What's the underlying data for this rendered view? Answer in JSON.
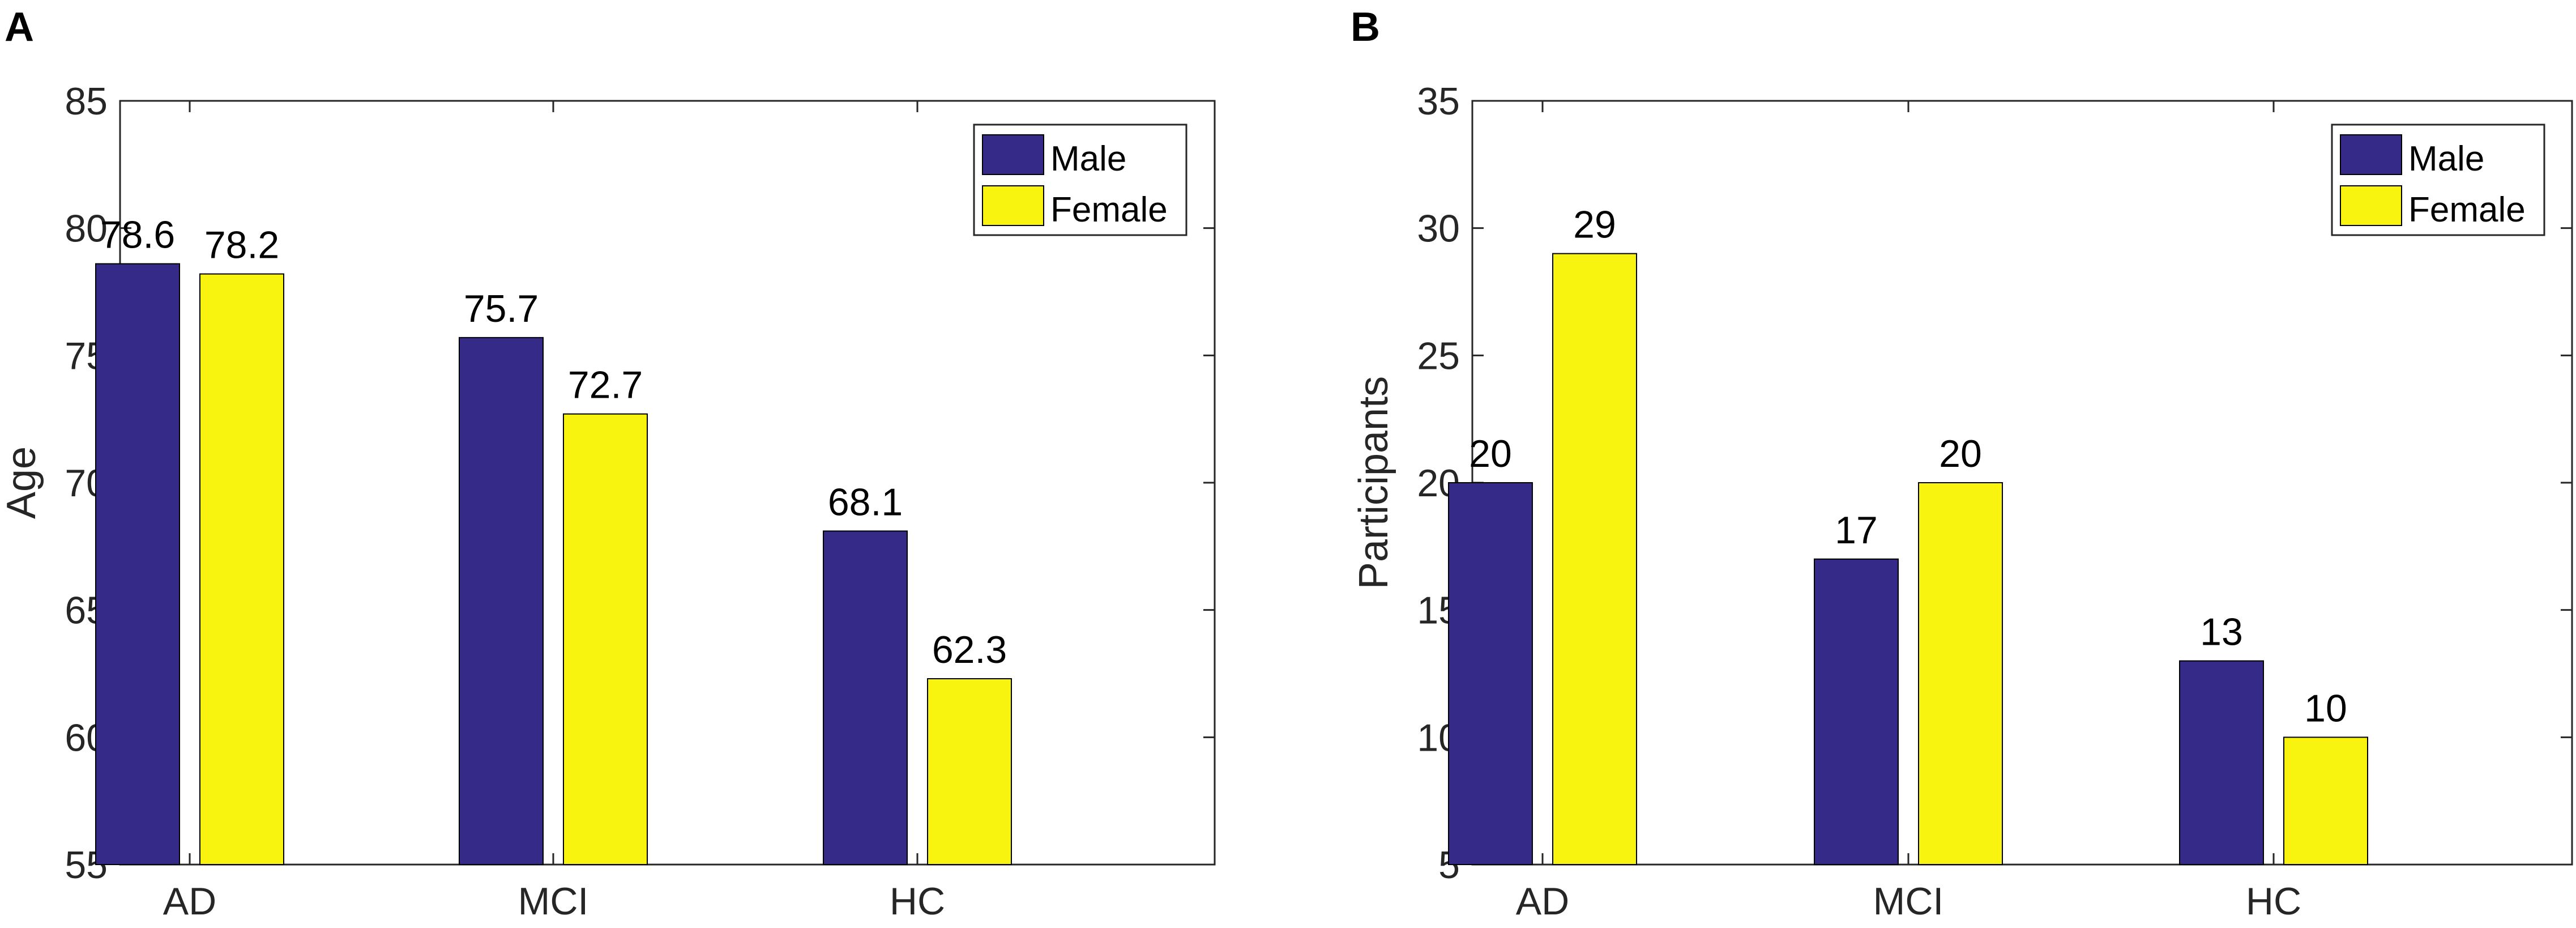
{
  "colors": {
    "male": "#352a87",
    "female": "#f9f40f",
    "edge": "#000000",
    "axis": "#262626"
  },
  "chart_data": [
    {
      "panel": "A",
      "type": "bar",
      "categories": [
        "AD",
        "MCI",
        "HC"
      ],
      "series": [
        {
          "name": "Male",
          "values": [
            78.6,
            75.7,
            68.1
          ]
        },
        {
          "name": "Female",
          "values": [
            78.2,
            72.7,
            62.3
          ]
        }
      ],
      "value_labels": [
        [
          "78.6",
          "75.7",
          "68.1"
        ],
        [
          "78.2",
          "72.7",
          "62.3"
        ]
      ],
      "title": "",
      "xlabel": "",
      "ylabel": "Age",
      "ylim": [
        55,
        85
      ],
      "yticks": [
        55,
        60,
        65,
        70,
        75,
        80,
        85
      ],
      "ytick_labels": [
        "55",
        "60",
        "65",
        "70",
        "75",
        "80",
        "85"
      ],
      "legend": {
        "entries": [
          "Male",
          "Female"
        ],
        "location": "top-right"
      },
      "grid": false
    },
    {
      "panel": "B",
      "type": "bar",
      "categories": [
        "AD",
        "MCI",
        "HC"
      ],
      "series": [
        {
          "name": "Male",
          "values": [
            20,
            17,
            13
          ]
        },
        {
          "name": "Female",
          "values": [
            29,
            20,
            10
          ]
        }
      ],
      "value_labels": [
        [
          "20",
          "17",
          "13"
        ],
        [
          "29",
          "20",
          "10"
        ]
      ],
      "title": "",
      "xlabel": "",
      "ylabel": "Participants",
      "ylim": [
        5,
        35
      ],
      "yticks": [
        5,
        10,
        15,
        20,
        25,
        30,
        35
      ],
      "ytick_labels": [
        "5",
        "10",
        "15",
        "20",
        "25",
        "30",
        "35"
      ],
      "legend": {
        "entries": [
          "Male",
          "Female"
        ],
        "location": "top-right"
      },
      "grid": false
    }
  ]
}
